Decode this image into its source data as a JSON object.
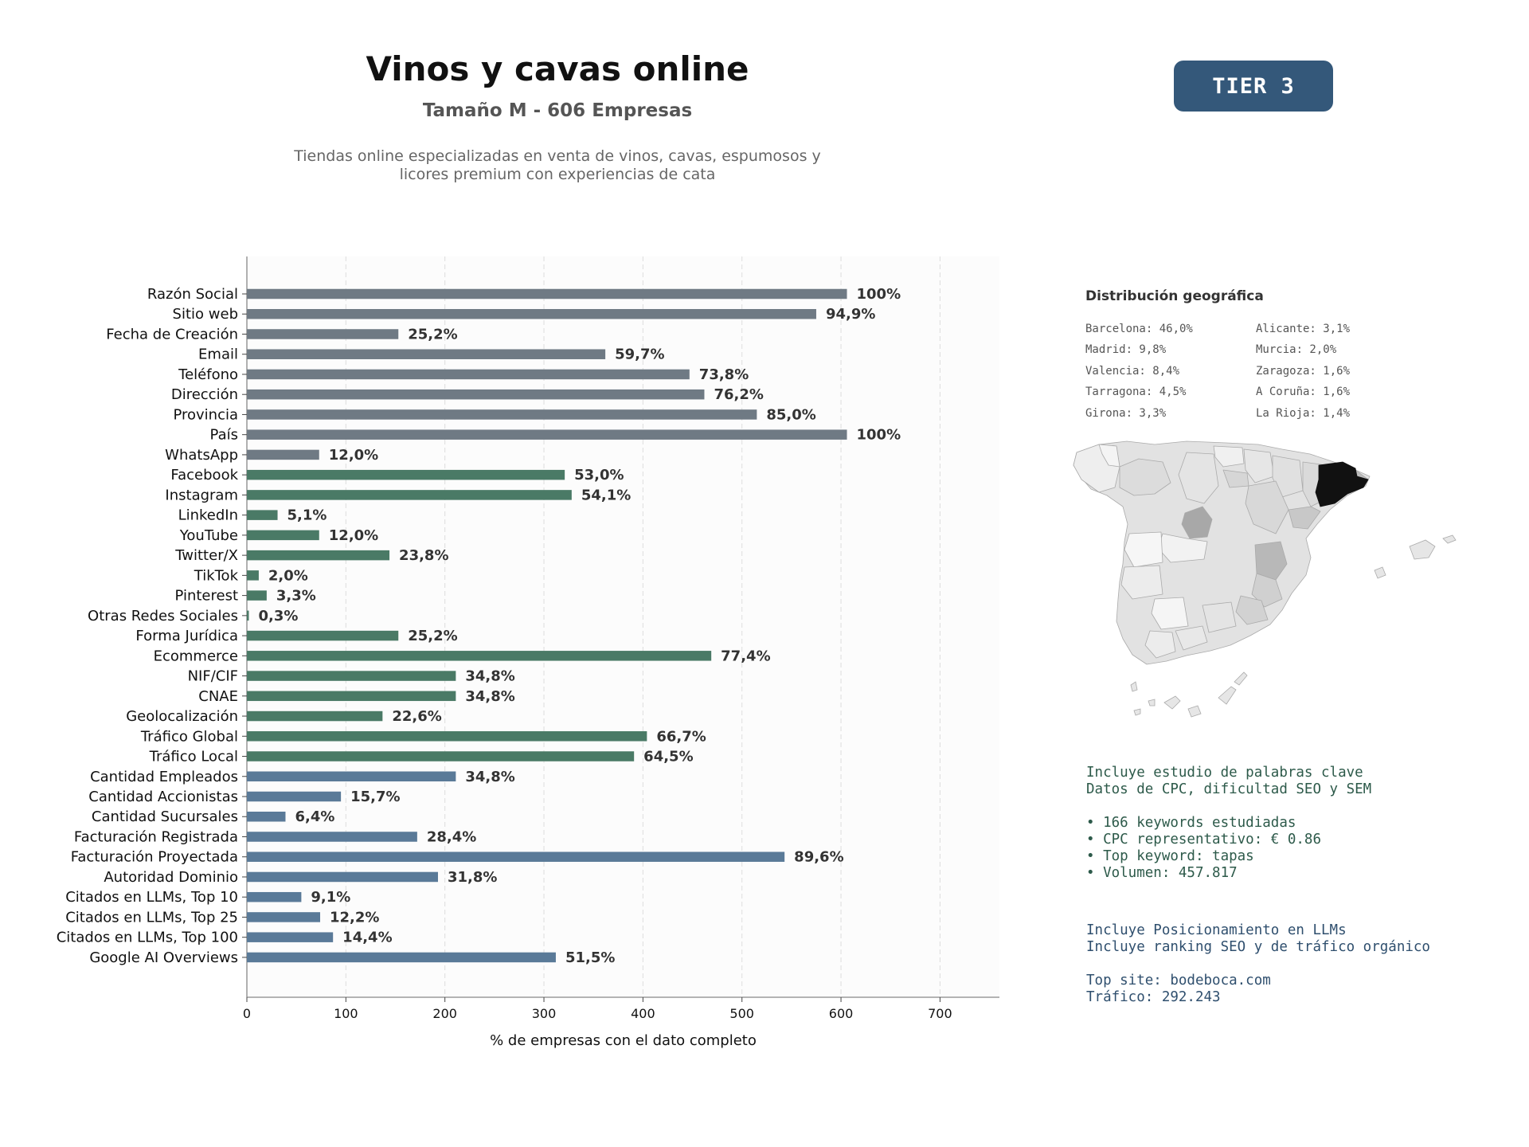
{
  "header": {
    "title": "Vinos y cavas online",
    "subtitle": "Tamaño M - 606 Empresas",
    "description_line1": "Tiendas online especializadas en venta de vinos, cavas, espumosos y",
    "description_line2": "licores premium con experiencias de cata",
    "tier_badge": "TIER 3"
  },
  "colors": {
    "group_basic": "#6f7a84",
    "group_digital": "#4a7a66",
    "group_business": "#5a7a98",
    "badge": "#34587a",
    "green_text": "#2d5a4a",
    "blue_text": "#2f4f6e"
  },
  "chart_data": {
    "type": "bar",
    "orientation": "horizontal",
    "xlabel": "% de empresas con el dato completo",
    "xlim": [
      0,
      760
    ],
    "xticks": [
      0,
      100,
      200,
      300,
      400,
      500,
      600,
      700
    ],
    "grid": "vertical dashed",
    "categories": [
      "Razón Social",
      "Sitio web",
      "Fecha de Creación",
      "Email",
      "Teléfono",
      "Dirección",
      "Provincia",
      "País",
      "WhatsApp",
      "Facebook",
      "Instagram",
      "LinkedIn",
      "YouTube",
      "Twitter/X",
      "TikTok",
      "Pinterest",
      "Otras Redes Sociales",
      "Forma Jurídica",
      "Ecommerce",
      "NIF/CIF",
      "CNAE",
      "Geolocalización",
      "Tráfico Global",
      "Tráfico Local",
      "Cantidad Empleados",
      "Cantidad Accionistas",
      "Cantidad Sucursales",
      "Facturación Registrada",
      "Facturación Proyectada",
      "Autoridad Dominio",
      "Citados en LLMs, Top 10",
      "Citados en LLMs, Top 25",
      "Citados en LLMs, Top 100",
      "Google AI Overviews"
    ],
    "values": [
      606,
      575,
      153,
      362,
      447,
      462,
      515,
      606,
      73,
      321,
      328,
      31,
      73,
      144,
      12,
      20,
      2,
      153,
      469,
      211,
      211,
      137,
      404,
      391,
      211,
      95,
      39,
      172,
      543,
      193,
      55,
      74,
      87,
      312
    ],
    "labels": [
      "100%",
      "94,9%",
      "25,2%",
      "59,7%",
      "73,8%",
      "76,2%",
      "85,0%",
      "100%",
      "12,0%",
      "53,0%",
      "54,1%",
      "5,1%",
      "12,0%",
      "23,8%",
      "2,0%",
      "3,3%",
      "0,3%",
      "25,2%",
      "77,4%",
      "34,8%",
      "34,8%",
      "22,6%",
      "66,7%",
      "64,5%",
      "34,8%",
      "15,7%",
      "6,4%",
      "28,4%",
      "89,6%",
      "31,8%",
      "9,1%",
      "12,2%",
      "14,4%",
      "51,5%"
    ],
    "groups": [
      "basic",
      "basic",
      "basic",
      "basic",
      "basic",
      "basic",
      "basic",
      "basic",
      "basic",
      "digital",
      "digital",
      "digital",
      "digital",
      "digital",
      "digital",
      "digital",
      "digital",
      "digital",
      "digital",
      "digital",
      "digital",
      "digital",
      "digital",
      "digital",
      "business",
      "business",
      "business",
      "business",
      "business",
      "business",
      "business",
      "business",
      "business",
      "business"
    ]
  },
  "geo": {
    "title": "Distribución geográfica",
    "col1": [
      "Barcelona: 46,0%",
      "Madrid: 9,8%",
      "Valencia: 8,4%",
      "Tarragona: 4,5%",
      "Girona: 3,3%"
    ],
    "col2": [
      "Alicante: 3,1%",
      "Murcia: 2,0%",
      "Zaragoza: 1,6%",
      "A Coruña: 1,6%",
      "La Rioja: 1,4%"
    ]
  },
  "keywords": {
    "line1": "Incluye estudio de palabras clave",
    "line2": "Datos de CPC, dificultad SEO y SEM",
    "bullet1": "• 166 keywords estudiadas",
    "bullet2": "• CPC representativo: € 0.86",
    "bullet3": "• Top keyword: tapas",
    "bullet4": "• Volumen: 457.817"
  },
  "llm": {
    "line1": "Incluye Posicionamiento en LLMs",
    "line2": "Incluye ranking SEO y de tráfico orgánico",
    "line3": "Top site: bodeboca.com",
    "line4": "Tráfico: 292.243"
  }
}
